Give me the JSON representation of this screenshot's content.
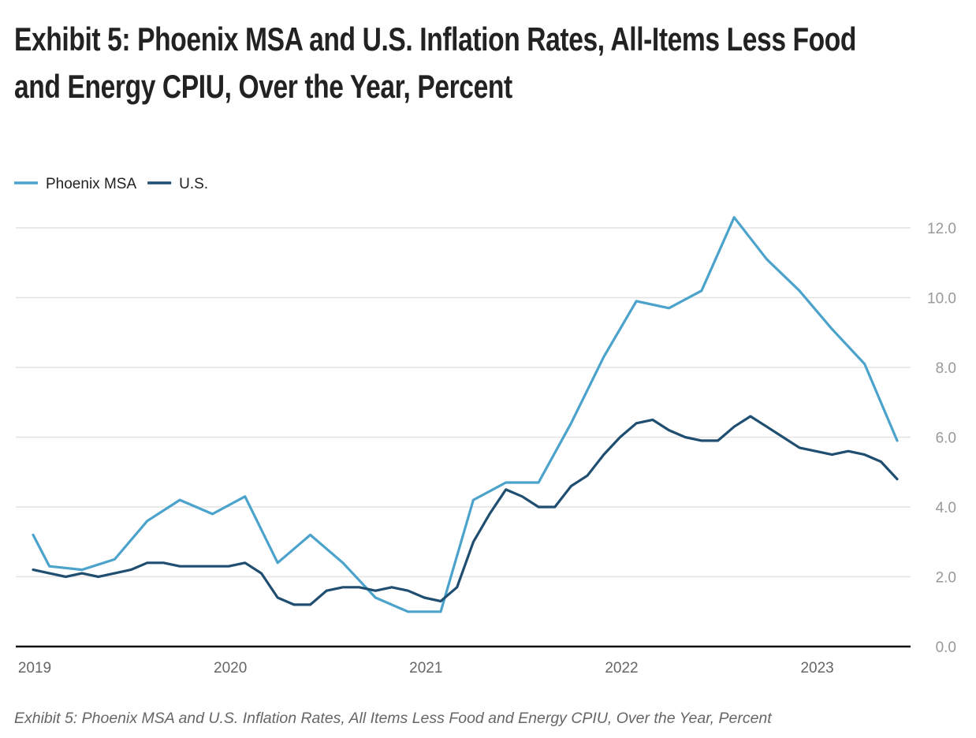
{
  "title": "Exhibit 5: Phoenix MSA and U.S. Inflation Rates, All-Items Less Food and Energy CPIU, Over the Year, Percent",
  "caption": "Exhibit 5: Phoenix MSA and U.S. Inflation Rates, All Items Less Food and Energy CPIU, Over the Year, Percent",
  "chart_data": {
    "type": "line",
    "title": "Exhibit 5: Phoenix MSA and U.S. Inflation Rates, All-Items Less Food and Energy CPIU, Over the Year, Percent",
    "xlabel": "",
    "ylabel": "",
    "x_ticks": [
      "2019",
      "2020",
      "2021",
      "2022",
      "2023"
    ],
    "y_ticks": [
      "0.0",
      "2.0",
      "4.0",
      "6.0",
      "8.0",
      "10.0",
      "12.0"
    ],
    "ylim": [
      0,
      12
    ],
    "xlim": [
      "2019-01",
      "2023-06"
    ],
    "grid": "horizontal",
    "y_axis_side": "right",
    "legend_position": "top-left",
    "series": [
      {
        "name": "Phoenix MSA",
        "color": "#4ba3cc",
        "x": [
          "2019-01",
          "2019-02",
          "2019-04",
          "2019-06",
          "2019-08",
          "2019-10",
          "2019-12",
          "2020-02",
          "2020-04",
          "2020-06",
          "2020-08",
          "2020-10",
          "2020-12",
          "2021-02",
          "2021-04",
          "2021-06",
          "2021-08",
          "2021-10",
          "2021-12",
          "2022-02",
          "2022-04",
          "2022-06",
          "2022-08",
          "2022-10",
          "2022-12",
          "2023-02",
          "2023-04",
          "2023-06"
        ],
        "values": [
          3.2,
          2.3,
          2.2,
          2.5,
          3.6,
          4.2,
          3.8,
          4.3,
          2.4,
          3.2,
          2.4,
          1.4,
          1.0,
          1.0,
          4.2,
          4.7,
          4.7,
          6.4,
          8.3,
          9.9,
          9.7,
          10.2,
          12.3,
          11.1,
          10.2,
          9.1,
          8.1,
          5.9
        ]
      },
      {
        "name": "U.S.",
        "color": "#1f4e70",
        "x": [
          "2019-01",
          "2019-02",
          "2019-03",
          "2019-04",
          "2019-05",
          "2019-06",
          "2019-07",
          "2019-08",
          "2019-09",
          "2019-10",
          "2019-11",
          "2019-12",
          "2020-01",
          "2020-02",
          "2020-03",
          "2020-04",
          "2020-05",
          "2020-06",
          "2020-07",
          "2020-08",
          "2020-09",
          "2020-10",
          "2020-11",
          "2020-12",
          "2021-01",
          "2021-02",
          "2021-03",
          "2021-04",
          "2021-05",
          "2021-06",
          "2021-07",
          "2021-08",
          "2021-09",
          "2021-10",
          "2021-11",
          "2021-12",
          "2022-01",
          "2022-02",
          "2022-03",
          "2022-04",
          "2022-05",
          "2022-06",
          "2022-07",
          "2022-08",
          "2022-09",
          "2022-10",
          "2022-11",
          "2022-12",
          "2023-01",
          "2023-02",
          "2023-03",
          "2023-04",
          "2023-05",
          "2023-06"
        ],
        "values": [
          2.2,
          2.1,
          2.0,
          2.1,
          2.0,
          2.1,
          2.2,
          2.4,
          2.4,
          2.3,
          2.3,
          2.3,
          2.3,
          2.4,
          2.1,
          1.4,
          1.2,
          1.2,
          1.6,
          1.7,
          1.7,
          1.6,
          1.7,
          1.6,
          1.4,
          1.3,
          1.7,
          3.0,
          3.8,
          4.5,
          4.3,
          4.0,
          4.0,
          4.6,
          4.9,
          5.5,
          6.0,
          6.4,
          6.5,
          6.2,
          6.0,
          5.9,
          5.9,
          6.3,
          6.6,
          6.3,
          6.0,
          5.7,
          5.6,
          5.5,
          5.6,
          5.5,
          5.3,
          4.8
        ]
      }
    ]
  }
}
